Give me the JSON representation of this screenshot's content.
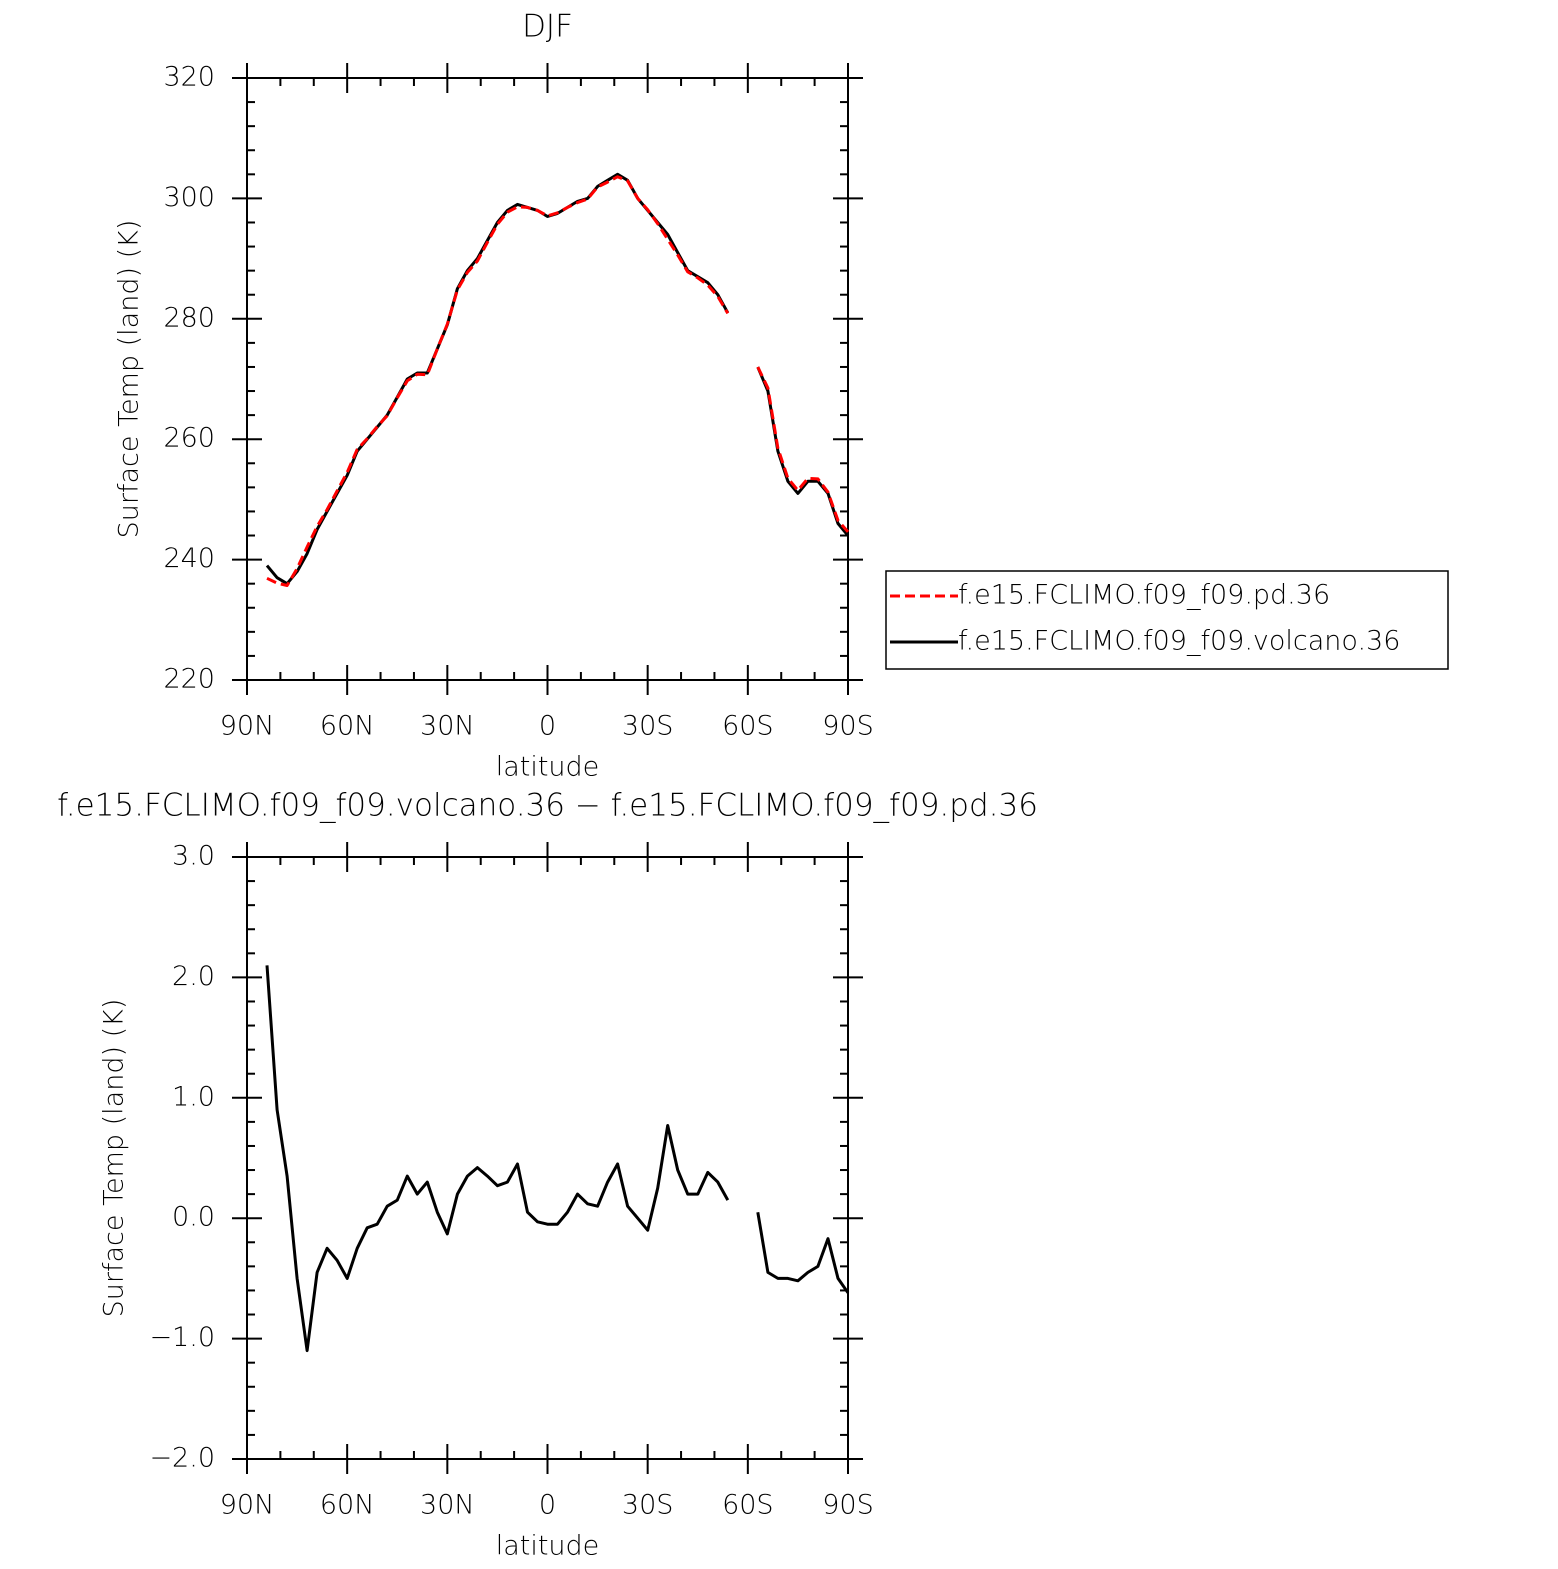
{
  "chart_data": [
    {
      "type": "line",
      "title": "DJF",
      "xlabel": "latitude",
      "ylabel": "Surface Temp (land) (K)",
      "x": [
        84,
        81,
        78,
        75,
        72,
        69,
        66,
        63,
        60,
        57,
        54,
        51,
        48,
        45,
        42,
        39,
        36,
        33,
        30,
        27,
        24,
        21,
        18,
        15,
        12,
        9,
        6,
        3,
        0,
        -3,
        -6,
        -9,
        -12,
        -15,
        -18,
        -21,
        -24,
        -27,
        -30,
        -33,
        -36,
        -39,
        -42,
        -45,
        -48,
        -51,
        -54,
        -57,
        -60,
        -63,
        -66,
        -69,
        -72,
        -75,
        -78,
        -81,
        -84,
        -87,
        -90
      ],
      "xlim": [
        90,
        -90
      ],
      "xticks": [
        {
          "value": 90,
          "label": "90N"
        },
        {
          "value": 60,
          "label": "60N"
        },
        {
          "value": 30,
          "label": "30N"
        },
        0,
        {
          "value": -30,
          "label": "30S"
        },
        {
          "value": -60,
          "label": "60S"
        },
        {
          "value": -90,
          "label": "90S"
        }
      ],
      "ylim": [
        220,
        320
      ],
      "yticks": [
        220,
        240,
        260,
        280,
        300,
        320
      ],
      "legend": "outside-right",
      "series": [
        {
          "name": "f.e15.FCLIMO.f09_f09.pd.36",
          "color": "#ff0000",
          "linestyle": "dashed",
          "values": [
            236.9,
            236.1,
            235.7,
            238.5,
            242.1,
            245.5,
            248.3,
            251.4,
            254.5,
            258.3,
            260.1,
            262.1,
            263.9,
            266.9,
            269.7,
            270.8,
            270.7,
            275,
            279.1,
            284.8,
            287.7,
            289.6,
            292.7,
            295.7,
            297.7,
            298.6,
            298.5,
            298,
            297.1,
            297.6,
            298.5,
            299.3,
            299.9,
            301.9,
            302.7,
            303.6,
            302.9,
            300,
            298.1,
            295.8,
            293.2,
            290.6,
            287.8,
            286.8,
            285.6,
            283.7,
            280.9,
            null,
            null,
            272,
            268.5,
            258.5,
            253.5,
            251.5,
            253.5,
            253.4,
            251.2,
            246.5,
            244.6
          ]
        },
        {
          "name": "f.e15.FCLIMO.f09_f09.volcano.36",
          "color": "#000000",
          "linestyle": "solid",
          "values": [
            239,
            237,
            236,
            238,
            241,
            245,
            248,
            251,
            254,
            258,
            260,
            262,
            264,
            267,
            270,
            271,
            271,
            275,
            279,
            285,
            288,
            290,
            293,
            296,
            298,
            299,
            298.5,
            298,
            297,
            297.5,
            298.5,
            299.5,
            300,
            302,
            303,
            304,
            303,
            300,
            298,
            296,
            294,
            291,
            288,
            287,
            286,
            284,
            281,
            null,
            null,
            272,
            268,
            258,
            253,
            251,
            253,
            253,
            251,
            246,
            244
          ]
        }
      ]
    },
    {
      "type": "line",
      "title": "f.e15.FCLIMO.f09_f09.volcano.36 − f.e15.FCLIMO.f09_f09.pd.36",
      "xlabel": "latitude",
      "ylabel": "Surface Temp (land) (K)",
      "x": [
        84,
        81,
        78,
        75,
        72,
        69,
        66,
        63,
        60,
        57,
        54,
        51,
        48,
        45,
        42,
        39,
        36,
        33,
        30,
        27,
        24,
        21,
        18,
        15,
        12,
        9,
        6,
        3,
        0,
        -3,
        -6,
        -9,
        -12,
        -15,
        -18,
        -21,
        -24,
        -27,
        -30,
        -33,
        -36,
        -39,
        -42,
        -45,
        -48,
        -51,
        -54,
        -57,
        -60,
        -63,
        -66,
        -69,
        -72,
        -75,
        -78,
        -81,
        -84,
        -87,
        -90
      ],
      "xlim": [
        90,
        -90
      ],
      "xticks": [
        {
          "value": 90,
          "label": "90N"
        },
        {
          "value": 60,
          "label": "60N"
        },
        {
          "value": 30,
          "label": "30N"
        },
        0,
        {
          "value": -30,
          "label": "30S"
        },
        {
          "value": -60,
          "label": "60S"
        },
        {
          "value": -90,
          "label": "90S"
        }
      ],
      "ylim": [
        -2,
        3
      ],
      "yticks": [
        {
          "value": -2,
          "label": "−2.0"
        },
        {
          "value": -1,
          "label": "−1.0"
        },
        {
          "value": 0,
          "label": "0.0"
        },
        {
          "value": 1,
          "label": "1.0"
        },
        {
          "value": 2,
          "label": "2.0"
        },
        {
          "value": 3,
          "label": "3.0"
        }
      ],
      "color": "#000000",
      "values": [
        2.1,
        0.9,
        0.35,
        -0.5,
        -1.1,
        -0.45,
        -0.25,
        -0.35,
        -0.5,
        -0.25,
        -0.08,
        -0.05,
        0.1,
        0.15,
        0.35,
        0.2,
        0.3,
        0.05,
        -0.13,
        0.2,
        0.35,
        0.42,
        0.35,
        0.27,
        0.3,
        0.45,
        0.05,
        -0.03,
        -0.05,
        -0.05,
        0.05,
        0.2,
        0.12,
        0.1,
        0.3,
        0.45,
        0.1,
        0.0,
        -0.1,
        0.25,
        0.77,
        0.4,
        0.2,
        0.2,
        0.38,
        0.3,
        0.15,
        null,
        null,
        0.05,
        -0.45,
        -0.5,
        -0.5,
        -0.52,
        -0.45,
        -0.4,
        -0.17,
        -0.5,
        -0.62
      ]
    }
  ]
}
